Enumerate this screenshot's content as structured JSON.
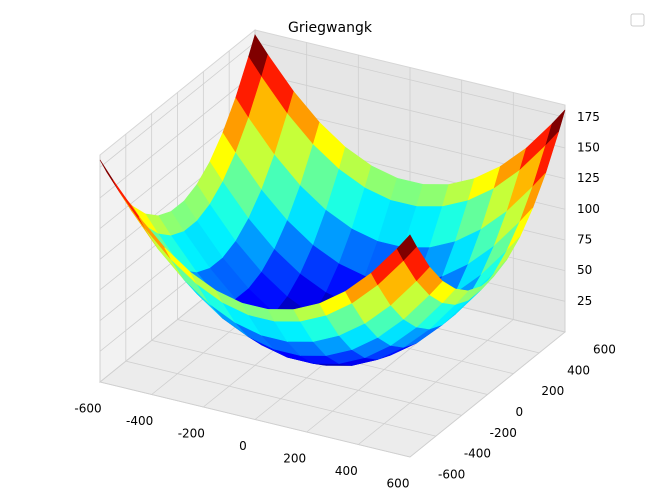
{
  "chart_data": {
    "type": "surface",
    "title": "Griegwangk",
    "x": [
      -600,
      -500,
      -400,
      -300,
      -200,
      -100,
      0,
      100,
      200,
      300,
      400,
      500,
      600
    ],
    "y": [
      -600,
      -500,
      -400,
      -300,
      -200,
      -100,
      0,
      100,
      200,
      300,
      400,
      500,
      600
    ],
    "z": [
      [
        181,
        153.5,
        131,
        113.5,
        101,
        93.5,
        91,
        93.5,
        101,
        113.5,
        131,
        153.5,
        181
      ],
      [
        153.5,
        126,
        103.5,
        86,
        73.5,
        66,
        63.5,
        66,
        73.5,
        86,
        103.5,
        126,
        153.5
      ],
      [
        131,
        103.5,
        81,
        63.5,
        51,
        43.5,
        41,
        43.5,
        51,
        63.5,
        81,
        103.5,
        131
      ],
      [
        113.5,
        86,
        63.5,
        46,
        33.5,
        26,
        23.5,
        26,
        33.5,
        46,
        63.5,
        86,
        113.5
      ],
      [
        101,
        73.5,
        51,
        33.5,
        21,
        13.5,
        11,
        13.5,
        21,
        33.5,
        51,
        73.5,
        101
      ],
      [
        93.5,
        66,
        43.5,
        26,
        13.5,
        6,
        3.5,
        6,
        13.5,
        26,
        43.5,
        66,
        93.5
      ],
      [
        91,
        63.5,
        41,
        23.5,
        11,
        3.5,
        1,
        3.5,
        11,
        23.5,
        41,
        63.5,
        91
      ],
      [
        93.5,
        66,
        43.5,
        26,
        13.5,
        6,
        3.5,
        6,
        13.5,
        26,
        43.5,
        66,
        93.5
      ],
      [
        101,
        73.5,
        51,
        33.5,
        21,
        13.5,
        11,
        13.5,
        21,
        33.5,
        51,
        73.5,
        101
      ],
      [
        113.5,
        86,
        63.5,
        46,
        33.5,
        26,
        23.5,
        26,
        33.5,
        46,
        63.5,
        86,
        113.5
      ],
      [
        131,
        103.5,
        81,
        63.5,
        51,
        43.5,
        41,
        43.5,
        51,
        63.5,
        81,
        103.5,
        131
      ],
      [
        153.5,
        126,
        103.5,
        86,
        73.5,
        66,
        63.5,
        66,
        73.5,
        86,
        103.5,
        126,
        153.5
      ],
      [
        181,
        153.5,
        131,
        113.5,
        101,
        93.5,
        91,
        93.5,
        101,
        113.5,
        131,
        153.5,
        181
      ]
    ],
    "colormap": "jet",
    "xlim": [
      -600,
      600
    ],
    "ylim": [
      -600,
      600
    ],
    "zlim": [
      0,
      185
    ],
    "xticks": [
      -600,
      -400,
      -200,
      0,
      200,
      400,
      600
    ],
    "yticks": [
      -600,
      -400,
      -200,
      0,
      200,
      400,
      600
    ],
    "zticks": [
      25,
      50,
      75,
      100,
      125,
      150,
      175
    ],
    "grid": true,
    "legend": "upper right"
  }
}
